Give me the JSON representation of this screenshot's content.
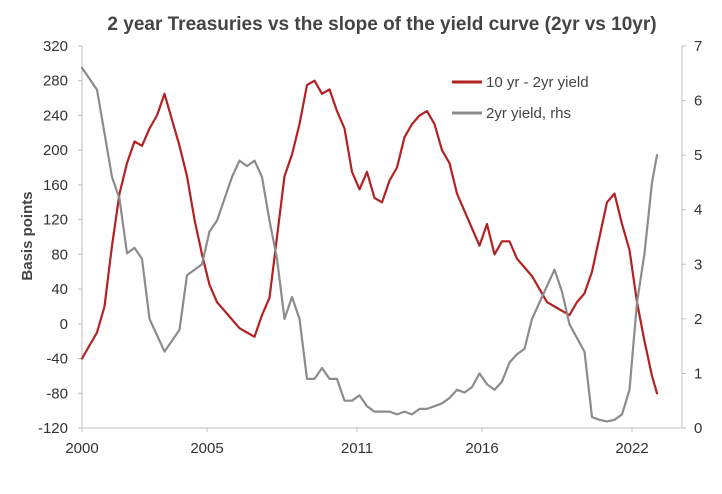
{
  "chart_data": {
    "type": "line",
    "title": "2 year Treasuries vs the slope of the yield curve (2yr vs 10yr)",
    "ylabel": "Basis points",
    "y2label": "",
    "xlim": [
      2000,
      2024
    ],
    "ylim": [
      -120,
      320
    ],
    "y2lim": [
      0,
      7
    ],
    "x_ticks": [
      2000,
      2005,
      2011,
      2016,
      2022
    ],
    "x_tick_labels": [
      "2000",
      "2005",
      "2011",
      "2016",
      "2022"
    ],
    "y_ticks": [
      -120,
      -80,
      -40,
      0,
      40,
      80,
      120,
      160,
      200,
      240,
      280,
      320
    ],
    "y_tick_labels": [
      "-120",
      "-80",
      "-40",
      "0",
      "40",
      "80",
      "120",
      "160",
      "200",
      "240",
      "280",
      "320"
    ],
    "y2_ticks": [
      0,
      1,
      2,
      3,
      4,
      5,
      6,
      7
    ],
    "y2_tick_labels": [
      "0",
      "1",
      "2",
      "3",
      "4",
      "5",
      "6",
      "7"
    ],
    "grid": false,
    "legend_position": "top-right",
    "series": [
      {
        "name": "10 yr - 2yr yield",
        "axis": "left",
        "color": "#b22222",
        "x": [
          2000.0,
          2000.3,
          2000.6,
          2000.9,
          2001.2,
          2001.5,
          2001.8,
          2002.1,
          2002.4,
          2002.7,
          2003.0,
          2003.3,
          2003.6,
          2003.9,
          2004.2,
          2004.5,
          2004.8,
          2005.1,
          2005.4,
          2005.7,
          2006.0,
          2006.3,
          2006.6,
          2006.9,
          2007.2,
          2007.5,
          2007.8,
          2008.1,
          2008.4,
          2008.7,
          2009.0,
          2009.3,
          2009.6,
          2009.9,
          2010.2,
          2010.5,
          2010.8,
          2011.1,
          2011.4,
          2011.7,
          2012.0,
          2012.3,
          2012.6,
          2012.9,
          2013.2,
          2013.5,
          2013.8,
          2014.1,
          2014.4,
          2014.7,
          2015.0,
          2015.3,
          2015.6,
          2015.9,
          2016.2,
          2016.5,
          2016.8,
          2017.1,
          2017.4,
          2017.7,
          2018.0,
          2018.3,
          2018.6,
          2018.9,
          2019.2,
          2019.5,
          2019.8,
          2020.1,
          2020.4,
          2020.7,
          2021.0,
          2021.3,
          2021.6,
          2021.9,
          2022.2,
          2022.5,
          2022.8,
          2023.0
        ],
        "y": [
          -40,
          -25,
          -10,
          20,
          90,
          150,
          185,
          210,
          205,
          225,
          240,
          265,
          235,
          205,
          170,
          120,
          80,
          45,
          25,
          15,
          5,
          -5,
          -10,
          -15,
          10,
          30,
          100,
          170,
          195,
          230,
          275,
          280,
          265,
          270,
          245,
          225,
          175,
          155,
          175,
          145,
          140,
          165,
          180,
          215,
          230,
          240,
          245,
          230,
          200,
          185,
          150,
          130,
          110,
          90,
          115,
          80,
          95,
          95,
          75,
          65,
          55,
          40,
          25,
          20,
          15,
          10,
          25,
          35,
          60,
          100,
          140,
          150,
          115,
          85,
          25,
          -20,
          -60,
          -80
        ]
      },
      {
        "name": "2yr yield, rhs",
        "axis": "right",
        "color": "#8c8c8c",
        "x": [
          2000.0,
          2000.3,
          2000.6,
          2000.9,
          2001.2,
          2001.5,
          2001.8,
          2002.1,
          2002.4,
          2002.7,
          2003.0,
          2003.3,
          2003.6,
          2003.9,
          2004.2,
          2004.5,
          2004.8,
          2005.1,
          2005.4,
          2005.7,
          2006.0,
          2006.3,
          2006.6,
          2006.9,
          2007.2,
          2007.5,
          2007.8,
          2008.1,
          2008.4,
          2008.7,
          2009.0,
          2009.3,
          2009.6,
          2009.9,
          2010.2,
          2010.5,
          2010.8,
          2011.1,
          2011.4,
          2011.7,
          2012.0,
          2012.3,
          2012.6,
          2012.9,
          2013.2,
          2013.5,
          2013.8,
          2014.1,
          2014.4,
          2014.7,
          2015.0,
          2015.3,
          2015.6,
          2015.9,
          2016.2,
          2016.5,
          2016.8,
          2017.1,
          2017.4,
          2017.7,
          2018.0,
          2018.3,
          2018.6,
          2018.9,
          2019.2,
          2019.5,
          2019.8,
          2020.1,
          2020.4,
          2020.7,
          2021.0,
          2021.3,
          2021.6,
          2021.9,
          2022.2,
          2022.5,
          2022.8,
          2023.0
        ],
        "y": [
          6.6,
          6.4,
          6.2,
          5.4,
          4.6,
          4.2,
          3.2,
          3.3,
          3.1,
          2.0,
          1.7,
          1.4,
          1.6,
          1.8,
          2.8,
          2.9,
          3.0,
          3.6,
          3.8,
          4.2,
          4.6,
          4.9,
          4.8,
          4.9,
          4.6,
          3.8,
          3.1,
          2.0,
          2.4,
          2.0,
          0.9,
          0.9,
          1.1,
          0.9,
          0.9,
          0.5,
          0.5,
          0.6,
          0.4,
          0.3,
          0.3,
          0.3,
          0.25,
          0.3,
          0.25,
          0.35,
          0.35,
          0.4,
          0.45,
          0.55,
          0.7,
          0.65,
          0.75,
          1.0,
          0.8,
          0.7,
          0.85,
          1.2,
          1.35,
          1.45,
          2.0,
          2.3,
          2.6,
          2.9,
          2.5,
          1.9,
          1.65,
          1.4,
          0.2,
          0.15,
          0.12,
          0.15,
          0.25,
          0.7,
          2.3,
          3.2,
          4.5,
          5.0
        ]
      }
    ]
  }
}
